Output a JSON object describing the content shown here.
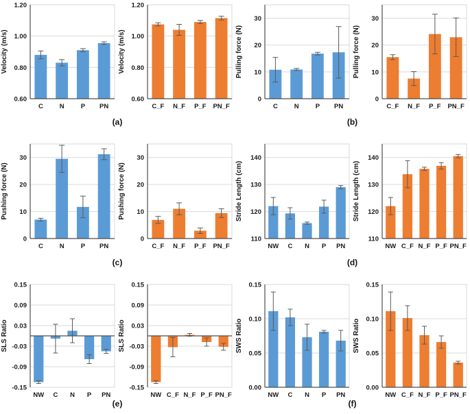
{
  "figure": {
    "background": "#ffffff",
    "colors": {
      "blue": "#5b9bd5",
      "orange": "#ed7d31",
      "error": "#595959",
      "grid": "#d9d9d9",
      "axis": "#4d4d4d",
      "text": "#1a1a1a"
    },
    "captions": [
      {
        "label": "(a)"
      },
      {
        "label": "(b)"
      },
      {
        "label": "(c)"
      },
      {
        "label": "(d)"
      },
      {
        "label": "(e)"
      },
      {
        "label": "(f)"
      }
    ]
  },
  "chart_data": [
    {
      "type": "bar",
      "id": "velocity-blue",
      "title": "",
      "ylabel": "Velocity (m/s)",
      "xlabel": "",
      "color": "blue",
      "categories": [
        "C",
        "N",
        "P",
        "PN"
      ],
      "values": [
        0.88,
        0.83,
        0.91,
        0.955
      ],
      "errors": [
        0.025,
        0.02,
        0.01,
        0.008
      ],
      "ylim": [
        0.6,
        1.2
      ],
      "ytick_values": [
        0.6,
        0.8,
        1.0,
        1.2
      ],
      "ytick_labels": [
        "0.60",
        "0.80",
        "1.00",
        "1.20"
      ],
      "grid": true,
      "legend": "none"
    },
    {
      "type": "bar",
      "id": "velocity-orange",
      "title": "",
      "ylabel": "Velocity (m/s)",
      "xlabel": "",
      "color": "orange",
      "categories": [
        "C_F",
        "N_F",
        "P_F",
        "PN_F"
      ],
      "values": [
        1.075,
        1.04,
        1.09,
        1.115
      ],
      "errors": [
        0.01,
        0.035,
        0.01,
        0.012
      ],
      "ylim": [
        0.6,
        1.2
      ],
      "ytick_values": [
        0.6,
        0.8,
        1.0,
        1.2
      ],
      "ytick_labels": [
        "0.60",
        "0.80",
        "1.00",
        "1.20"
      ],
      "grid": true,
      "legend": "none"
    },
    {
      "type": "bar",
      "id": "pulling-force-blue",
      "title": "",
      "ylabel": "Pulling force (N)",
      "xlabel": "",
      "color": "blue",
      "categories": [
        "C",
        "N",
        "P",
        "PN"
      ],
      "values": [
        10.8,
        10.9,
        16.8,
        17.3
      ],
      "errors": [
        4.6,
        0.4,
        0.5,
        9.6
      ],
      "ylim": [
        0,
        35
      ],
      "ytick_values": [
        0,
        10,
        20,
        30
      ],
      "ytick_labels": [
        "0",
        "10",
        "20",
        "30"
      ],
      "grid": true,
      "legend": "none"
    },
    {
      "type": "bar",
      "id": "pulling-force-orange",
      "title": "",
      "ylabel": "Pulling force (N)",
      "xlabel": "",
      "color": "orange",
      "categories": [
        "C_F",
        "N_F",
        "P_F",
        "PN_F"
      ],
      "values": [
        15.5,
        7.5,
        24.1,
        22.9
      ],
      "errors": [
        0.9,
        2.6,
        7.4,
        7.2
      ],
      "ylim": [
        0,
        35
      ],
      "ytick_values": [
        0,
        10,
        20,
        30
      ],
      "ytick_labels": [
        "0",
        "10",
        "20",
        "30"
      ],
      "grid": true,
      "legend": "none"
    },
    {
      "type": "bar",
      "id": "pushing-force-blue",
      "title": "",
      "ylabel": "Pushing force (N)",
      "xlabel": "",
      "color": "blue",
      "categories": [
        "C",
        "N",
        "P",
        "PN"
      ],
      "values": [
        7.0,
        29.5,
        11.7,
        31.2
      ],
      "errors": [
        0.5,
        5.0,
        4.0,
        2.0
      ],
      "ylim": [
        0,
        35
      ],
      "ytick_values": [
        0,
        10,
        20,
        30
      ],
      "ytick_labels": [
        "0",
        "10",
        "20",
        "30"
      ],
      "grid": true,
      "legend": "none"
    },
    {
      "type": "bar",
      "id": "pushing-force-orange",
      "title": "",
      "ylabel": "Pushing force (N)",
      "xlabel": "",
      "color": "orange",
      "categories": [
        "C_F",
        "N_F",
        "P_F",
        "PN_F"
      ],
      "values": [
        6.9,
        11.0,
        2.9,
        9.4
      ],
      "errors": [
        1.3,
        2.2,
        1.0,
        1.6
      ],
      "ylim": [
        0,
        35
      ],
      "ytick_values": [
        0,
        10,
        20,
        30
      ],
      "ytick_labels": [
        "0",
        "10",
        "20",
        "30"
      ],
      "grid": true,
      "legend": "none"
    },
    {
      "type": "bar",
      "id": "stride-length-blue",
      "title": "",
      "ylabel": "Stride Length (cm)",
      "xlabel": "",
      "color": "blue",
      "categories": [
        "NW",
        "C",
        "N",
        "P",
        "PN"
      ],
      "values": [
        122.0,
        119.3,
        115.7,
        121.8,
        129.0
      ],
      "errors": [
        3.2,
        2.1,
        0.4,
        2.4,
        0.6
      ],
      "ylim": [
        110,
        145
      ],
      "ytick_values": [
        110,
        120,
        130,
        140
      ],
      "ytick_labels": [
        "110",
        "120",
        "130",
        "140"
      ],
      "grid": true,
      "legend": "none"
    },
    {
      "type": "bar",
      "id": "stride-length-orange",
      "title": "",
      "ylabel": "Stride Length (cm)",
      "xlabel": "",
      "color": "orange",
      "categories": [
        "NW",
        "C_F",
        "N_F",
        "P_F",
        "PN_F"
      ],
      "values": [
        122.0,
        133.8,
        135.8,
        136.9,
        140.5
      ],
      "errors": [
        3.2,
        5.0,
        0.6,
        1.2,
        0.6
      ],
      "ylim": [
        110,
        145
      ],
      "ytick_values": [
        110,
        120,
        130,
        140
      ],
      "ytick_labels": [
        "110",
        "120",
        "130",
        "140"
      ],
      "grid": true,
      "legend": "none"
    },
    {
      "type": "bar",
      "id": "sls-ratio-blue",
      "title": "",
      "ylabel": "SLS Ratio",
      "xlabel": "",
      "color": "blue",
      "categories": [
        "NW",
        "C",
        "N",
        "P",
        "PN"
      ],
      "values": [
        -0.135,
        -0.008,
        0.015,
        -0.068,
        -0.045
      ],
      "errors": [
        0.004,
        0.042,
        0.035,
        0.013,
        0.006
      ],
      "ylim": [
        -0.15,
        0.15
      ],
      "ytick_values": [
        -0.15,
        -0.09,
        -0.03,
        0.03,
        0.09,
        0.15
      ],
      "ytick_labels": [
        "-0.15",
        "-0.09",
        "-0.03",
        "0.03",
        "0.09",
        "0.15"
      ],
      "grid": true,
      "legend": "none"
    },
    {
      "type": "bar",
      "id": "sls-ratio-orange",
      "title": "",
      "ylabel": "SLS Ratio",
      "xlabel": "",
      "color": "orange",
      "categories": [
        "NW",
        "C_F",
        "N_F",
        "P_F",
        "PN_F"
      ],
      "values": [
        -0.135,
        -0.033,
        0.003,
        -0.018,
        -0.032
      ],
      "errors": [
        0.004,
        0.028,
        0.004,
        0.012,
        0.01
      ],
      "ylim": [
        -0.15,
        0.15
      ],
      "ytick_values": [
        -0.15,
        -0.09,
        -0.03,
        0.03,
        0.09,
        0.15
      ],
      "ytick_labels": [
        "-0.15",
        "-0.09",
        "-0.03",
        "0.03",
        "0.09",
        "0.15"
      ],
      "grid": true,
      "legend": "none"
    },
    {
      "type": "bar",
      "id": "sws-ratio-blue",
      "title": "",
      "ylabel": "SWS Ratio",
      "xlabel": "",
      "color": "blue",
      "categories": [
        "NW",
        "C",
        "N",
        "P",
        "PN"
      ],
      "values": [
        0.111,
        0.102,
        0.073,
        0.081,
        0.068
      ],
      "errors": [
        0.028,
        0.012,
        0.019,
        0.002,
        0.015
      ],
      "ylim": [
        0,
        0.15
      ],
      "ytick_values": [
        0,
        0.05,
        0.1,
        0.15
      ],
      "ytick_labels": [
        "0.00",
        "0.05",
        "0.10",
        "0.15"
      ],
      "grid": true,
      "legend": "none"
    },
    {
      "type": "bar",
      "id": "sws-ratio-orange",
      "title": "",
      "ylabel": "SWS Ratio",
      "xlabel": "",
      "color": "orange",
      "categories": [
        "NW",
        "C_F",
        "N_F",
        "P_F",
        "PN_F"
      ],
      "values": [
        0.111,
        0.101,
        0.076,
        0.066,
        0.036
      ],
      "errors": [
        0.028,
        0.018,
        0.013,
        0.009,
        0.002
      ],
      "ylim": [
        0,
        0.15
      ],
      "ytick_values": [
        0,
        0.05,
        0.1,
        0.15
      ],
      "ytick_labels": [
        "0.00",
        "0.05",
        "0.10",
        "0.15"
      ],
      "grid": true,
      "legend": "none"
    }
  ]
}
